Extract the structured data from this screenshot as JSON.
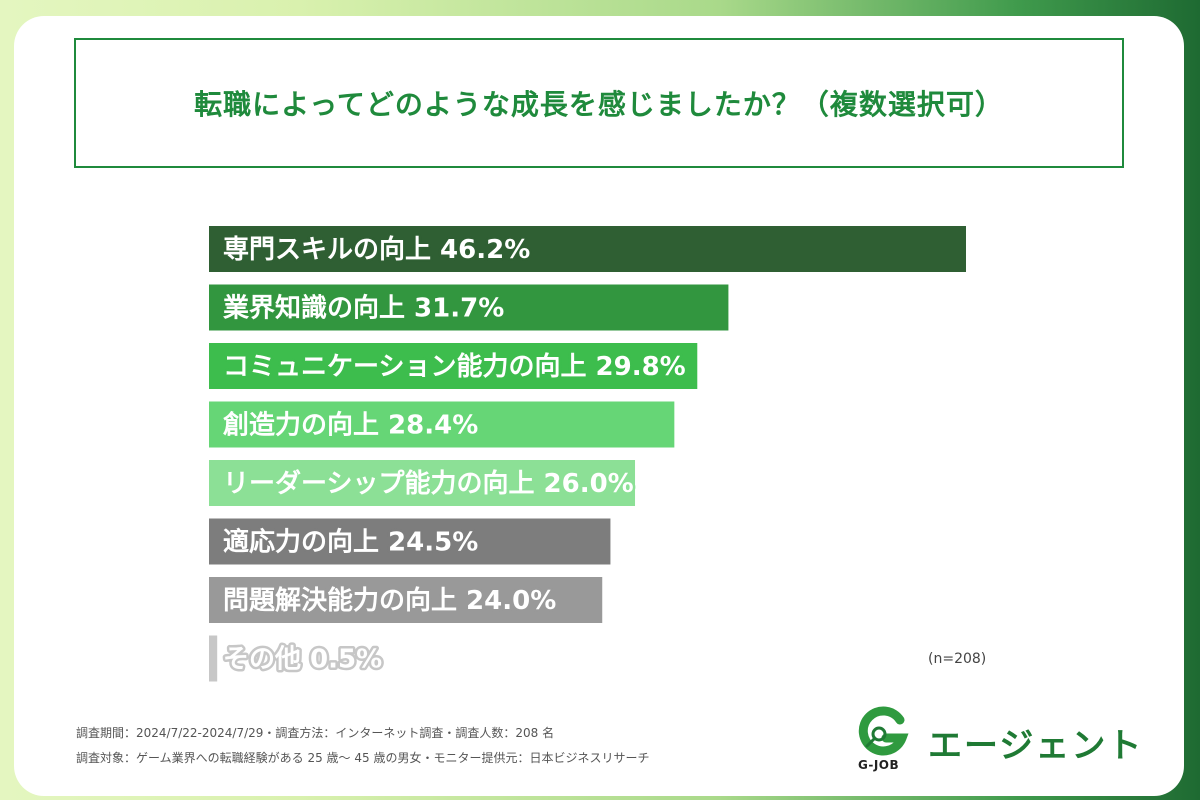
{
  "title": "転職によってどのような成長を感じましたか？（複数選択可）",
  "chart_data": {
    "type": "bar",
    "orientation": "horizontal",
    "title": "転職によってどのような成長を感じましたか？（複数選択可）",
    "categories": [
      "専門スキルの向上",
      "業界知識の向上",
      "コミュニケーション能力の向上",
      "創造力の向上",
      "リーダーシップ能力の向上",
      "適応力の向上",
      "問題解決能力の向上",
      "その他"
    ],
    "values": [
      46.2,
      31.7,
      29.8,
      28.4,
      26.0,
      24.5,
      24.0,
      0.5
    ],
    "value_labels": [
      "46.2%",
      "31.7%",
      "29.8%",
      "28.4%",
      "26.0%",
      "24.5%",
      "24.0%",
      "0.5%"
    ],
    "colors": [
      "#2f5f33",
      "#32963f",
      "#3dbd4d",
      "#66d676",
      "#8ce096",
      "#7d7d7d",
      "#999999",
      "#c7c7c7"
    ],
    "xlim": [
      0,
      46.2
    ],
    "sample_size": "(n=208)"
  },
  "footer": {
    "line1": "調査期間：2024/7/22-2024/7/29・調査方法：インターネット調査・調査人数：208 名",
    "line2": "調査対象：ゲーム業界への転職経験がある 25 歳〜 45 歳の男女・モニター提供元：日本ビジネスリサーチ"
  },
  "logo": {
    "sub": "G-JOB",
    "word": "エージェント",
    "color": "#1f7a34"
  }
}
